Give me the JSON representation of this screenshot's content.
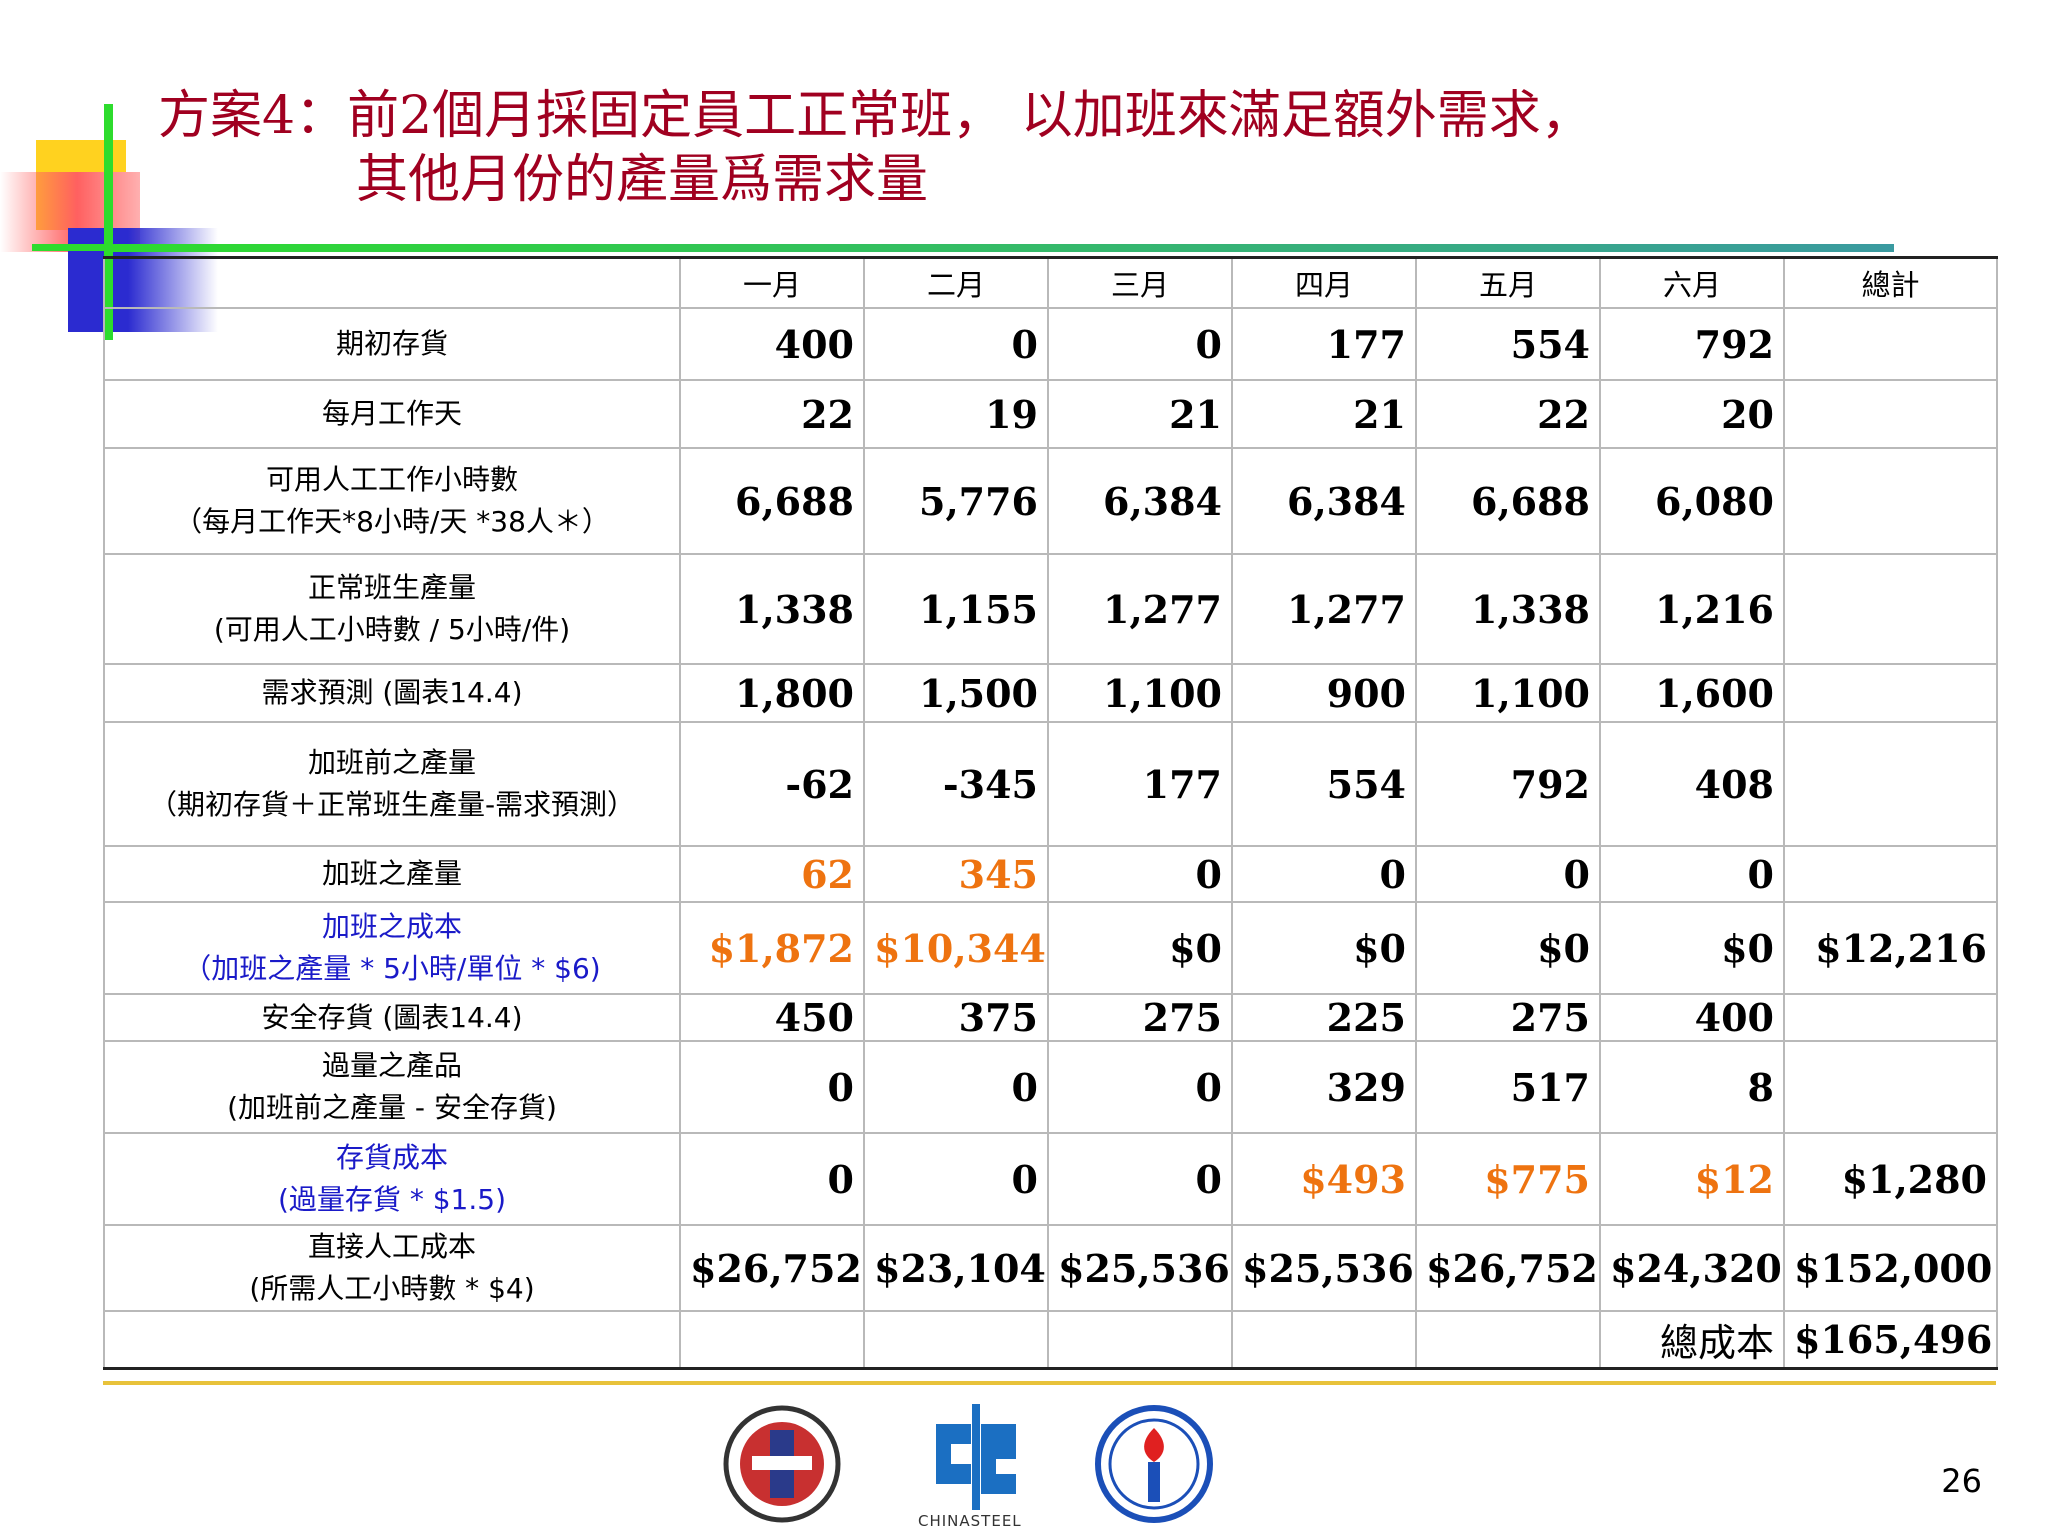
{
  "title": {
    "line1": "方案4：前2個月採固定員工正常班， 以加班來滿足額外需求，",
    "line2": "其他月份的產量爲需求量"
  },
  "table": {
    "headers": [
      "",
      "一月",
      "二月",
      "三月",
      "四月",
      "五月",
      "六月",
      "總計"
    ],
    "rows": [
      {
        "label1": "期初存貨",
        "label2": "",
        "values": [
          "400",
          "0",
          "0",
          "177",
          "554",
          "792"
        ],
        "total": ""
      },
      {
        "label1": "每月工作天",
        "label2": "",
        "values": [
          "22",
          "19",
          "21",
          "21",
          "22",
          "20"
        ],
        "total": ""
      },
      {
        "label1": "可用人工工作小時數",
        "label2": "（每月工作天*8小時/天 *38人＊）",
        "values": [
          "6,688",
          "5,776",
          "6,384",
          "6,384",
          "6,688",
          "6,080"
        ],
        "total": ""
      },
      {
        "label1": "正常班生產量",
        "label2": "(可用人工小時數 / 5小時/件)",
        "values": [
          "1,338",
          "1,155",
          "1,277",
          "1,277",
          "1,338",
          "1,216"
        ],
        "total": ""
      },
      {
        "label1": "需求預測 (圖表14.4)",
        "label2": "",
        "values": [
          "1,800",
          "1,500",
          "1,100",
          "900",
          "1,100",
          "1,600"
        ],
        "total": ""
      },
      {
        "label1": "加班前之產量",
        "label2": "（期初存貨＋正常班生產量-需求預測）",
        "values": [
          "-62",
          "-345",
          "177",
          "554",
          "792",
          "408"
        ],
        "total": ""
      },
      {
        "label1": "加班之產量",
        "label2": "",
        "values": [
          "62",
          "345",
          "0",
          "0",
          "0",
          "0"
        ],
        "total": ""
      },
      {
        "label1": "加班之成本",
        "label2": "（加班之產量 * 5小時/單位 * $6)",
        "values": [
          "$1,872",
          "$10,344",
          "$0",
          "$0",
          "$0",
          "$0"
        ],
        "total": "$12,216"
      },
      {
        "label1": "安全存貨 (圖表14.4)",
        "label2": "",
        "values": [
          "450",
          "375",
          "275",
          "225",
          "275",
          "400"
        ],
        "total": ""
      },
      {
        "label1": "過量之產品",
        "label2": "(加班前之產量 - 安全存貨)",
        "values": [
          "0",
          "0",
          "0",
          "329",
          "517",
          "8"
        ],
        "total": ""
      },
      {
        "label1": "存貨成本",
        "label2": "(過量存貨 * $1.5)",
        "values": [
          "0",
          "0",
          "0",
          "$493",
          "$775",
          "$12"
        ],
        "total": "$1,280"
      },
      {
        "label1": "直接人工成本",
        "label2": "(所需人工小時數 * $4)",
        "values": [
          "$26,752",
          "$23,104",
          "$25,536",
          "$25,536",
          "$26,752",
          "$24,320"
        ],
        "total": "$152,000"
      }
    ],
    "total_cost_label": "總成本",
    "total_cost_value": "$165,496"
  },
  "colors": {
    "title": "#a00020",
    "highlight_orange": "#ee7310",
    "highlight_blue": "#1a1ac8"
  },
  "footer": {
    "logo_text": "CHINASTEEL",
    "page_number": "26"
  }
}
